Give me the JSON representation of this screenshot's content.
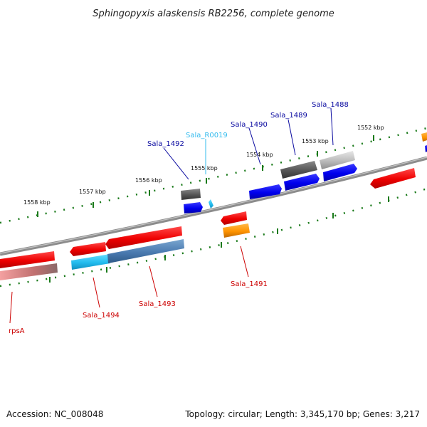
{
  "title": "Sphingopyxis alaskensis RB2256, complete genome",
  "footer": {
    "accession": "Accession: NC_008048",
    "topology": "Topology: circular; Length: 3,345,170 bp; Genes: 3,217"
  },
  "colors": {
    "backbone": "#8c8c8c",
    "tick": "#1a7a1a",
    "forward_label": "#0a0aa0",
    "reverse_label": "#cc0000",
    "rna_label": "#33bbee"
  },
  "scale": {
    "ticks": [
      {
        "label": "1558 kbp"
      },
      {
        "label": "1557 kbp"
      },
      {
        "label": "1556 kbp"
      },
      {
        "label": "1555 kbp"
      },
      {
        "label": "1554 kbp"
      },
      {
        "label": "1553 kbp"
      },
      {
        "label": "1552 kbp"
      }
    ]
  },
  "gene_labels": [
    {
      "text": "Sala_1492",
      "strand": "forward"
    },
    {
      "text": "Sala_R0019",
      "strand": "rna"
    },
    {
      "text": "Sala_1490",
      "strand": "forward"
    },
    {
      "text": "Sala_1489",
      "strand": "forward"
    },
    {
      "text": "Sala_1488",
      "strand": "forward"
    },
    {
      "text": "rpsA",
      "strand": "reverse"
    },
    {
      "text": "Sala_1494",
      "strand": "reverse"
    },
    {
      "text": "Sala_1493",
      "strand": "reverse"
    },
    {
      "text": "Sala_1491",
      "strand": "reverse"
    }
  ]
}
